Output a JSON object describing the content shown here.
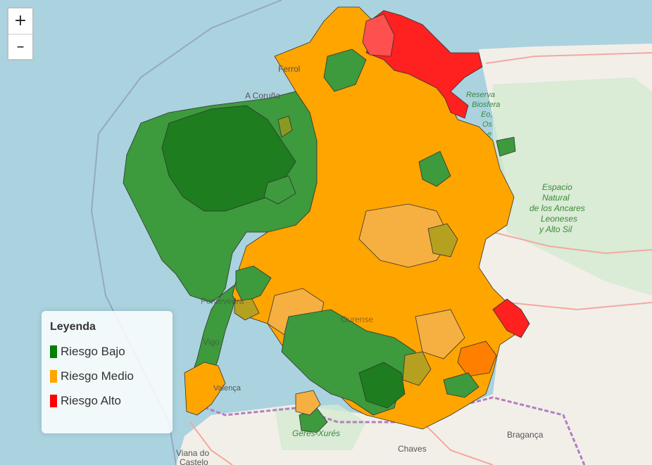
{
  "zoom": {
    "in_label": "+",
    "out_label": "–"
  },
  "legend": {
    "title": "Leyenda",
    "items": [
      {
        "label": "Riesgo Bajo",
        "color": "#008000"
      },
      {
        "label": "Riesgo Medio",
        "color": "#FFA500"
      },
      {
        "label": "Riesgo Alto",
        "color": "#FF0000"
      }
    ]
  },
  "basemap_labels": {
    "ferrol": "Ferrol",
    "a_coruna": "A Coruña",
    "reserva_1": "Reserva",
    "reserva_2": "Biosfera",
    "reserva_3": "Eo,",
    "reserva_4": "Os",
    "reserva_5": "e",
    "ancares_1": "Espacio",
    "ancares_2": "Natural",
    "ancares_3": "de los Ancares",
    "ancares_4": "Leoneses",
    "ancares_5": "y Alto Sil",
    "pontevedra": "Pontevedra",
    "vigo": "Vigo",
    "ourense": "Ourense",
    "valenca": "Valença",
    "geres": "Gerês-Xurés",
    "chaves": "Chaves",
    "braganca": "Bragança",
    "viana_1": "Viana do",
    "viana_2": "Castelo"
  },
  "colors": {
    "sea": "#aad3df",
    "land": "#f2efe9",
    "low": "#008000",
    "medium": "#FFA500",
    "high": "#FF0000"
  }
}
